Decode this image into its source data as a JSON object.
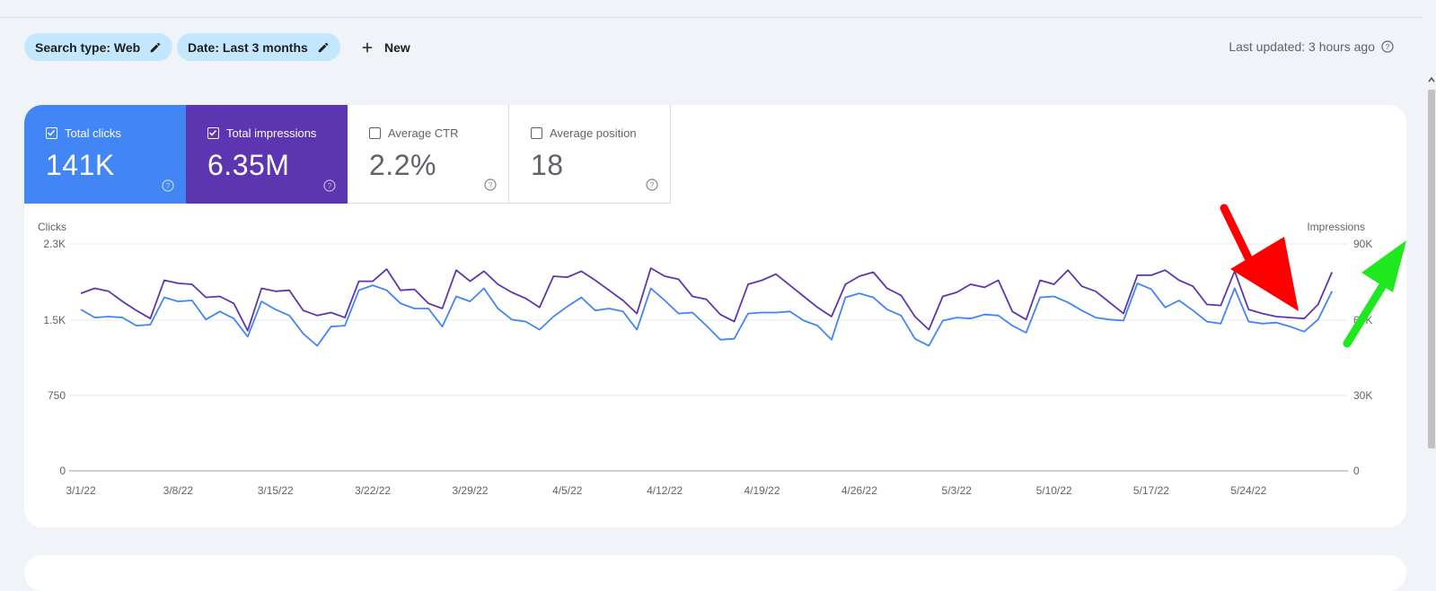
{
  "filters": {
    "search_type": "Search type: Web",
    "date": "Date: Last 3 months",
    "new_label": "New",
    "last_updated": "Last updated: 3 hours ago"
  },
  "metrics": [
    {
      "label": "Total clicks",
      "value": "141K",
      "checked": true,
      "color": "#4285f4"
    },
    {
      "label": "Total impressions",
      "value": "6.35M",
      "checked": true,
      "color": "#5e35b1"
    },
    {
      "label": "Average CTR",
      "value": "2.2%",
      "checked": false
    },
    {
      "label": "Average position",
      "value": "18",
      "checked": false
    }
  ],
  "chart_data": {
    "type": "line",
    "left_axis_label": "Clicks",
    "right_axis_label": "Impressions",
    "left_ticks": [
      "2.3K",
      "1.5K",
      "750",
      "0"
    ],
    "right_ticks": [
      "90K",
      "60K",
      "30K",
      "0"
    ],
    "left_ylim": [
      0,
      2250
    ],
    "right_ylim": [
      0,
      90000
    ],
    "x_labels": [
      "3/1/22",
      "3/8/22",
      "3/15/22",
      "3/22/22",
      "3/29/22",
      "4/5/22",
      "4/12/22",
      "4/19/22",
      "4/26/22",
      "5/3/22",
      "5/10/22",
      "5/17/22",
      "5/24/22"
    ],
    "grid": true,
    "series": [
      {
        "name": "Total clicks",
        "axis": "left",
        "color": "#4285f4",
        "values": [
          1600,
          1520,
          1530,
          1520,
          1440,
          1450,
          1720,
          1680,
          1690,
          1500,
          1580,
          1510,
          1330,
          1680,
          1600,
          1540,
          1360,
          1240,
          1430,
          1440,
          1790,
          1840,
          1790,
          1660,
          1610,
          1610,
          1430,
          1730,
          1680,
          1810,
          1610,
          1500,
          1480,
          1400,
          1530,
          1630,
          1720,
          1590,
          1610,
          1580,
          1400,
          1810,
          1690,
          1560,
          1570,
          1440,
          1300,
          1310,
          1560,
          1570,
          1570,
          1580,
          1490,
          1440,
          1300,
          1720,
          1760,
          1720,
          1600,
          1540,
          1310,
          1240,
          1490,
          1520,
          1510,
          1550,
          1540,
          1440,
          1370,
          1720,
          1730,
          1670,
          1590,
          1520,
          1500,
          1490,
          1860,
          1800,
          1620,
          1690,
          1590,
          1480,
          1460,
          1810,
          1480,
          1460,
          1470,
          1430,
          1380,
          1500,
          1780
        ]
      },
      {
        "name": "Total impressions",
        "axis": "left",
        "color": "#5e35b1",
        "values": [
          1760,
          1810,
          1780,
          1680,
          1590,
          1510,
          1890,
          1860,
          1850,
          1720,
          1730,
          1660,
          1390,
          1810,
          1780,
          1790,
          1590,
          1540,
          1570,
          1520,
          1880,
          1880,
          2000,
          1790,
          1800,
          1660,
          1610,
          1990,
          1880,
          1980,
          1850,
          1770,
          1710,
          1620,
          1930,
          1920,
          1980,
          1890,
          1790,
          1690,
          1560,
          2010,
          1930,
          1900,
          1730,
          1700,
          1550,
          1480,
          1850,
          1890,
          1950,
          1840,
          1730,
          1620,
          1530,
          1850,
          1930,
          1970,
          1810,
          1740,
          1530,
          1400,
          1730,
          1770,
          1850,
          1820,
          1890,
          1580,
          1500,
          1890,
          1850,
          1990,
          1830,
          1780,
          1670,
          1560,
          1940,
          1940,
          1990,
          1890,
          1830,
          1650,
          1640,
          1980,
          1600,
          1560,
          1530,
          1520,
          1510,
          1650,
          1970
        ]
      }
    ],
    "annotations": [
      "red-arrow-down",
      "green-arrow-up"
    ]
  }
}
